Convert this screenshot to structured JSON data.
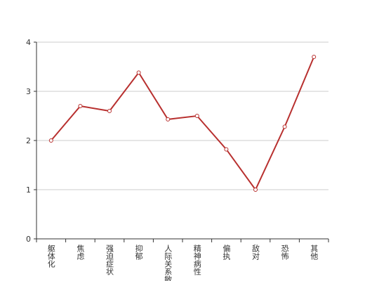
{
  "chart_data": {
    "type": "line",
    "categories": [
      "躯体化",
      "焦虑",
      "强迫症状",
      "抑郁",
      "人际关系敏感",
      "精神病性",
      "偏执",
      "敌对",
      "恐怖",
      "其他"
    ],
    "values": [
      2.0,
      2.7,
      2.6,
      3.38,
      2.43,
      2.5,
      1.82,
      1.0,
      2.28,
      3.7
    ],
    "color": "#b8302f",
    "ylim": [
      0,
      4
    ],
    "yticks": [
      0,
      1,
      2,
      3,
      4
    ],
    "grid": true
  }
}
